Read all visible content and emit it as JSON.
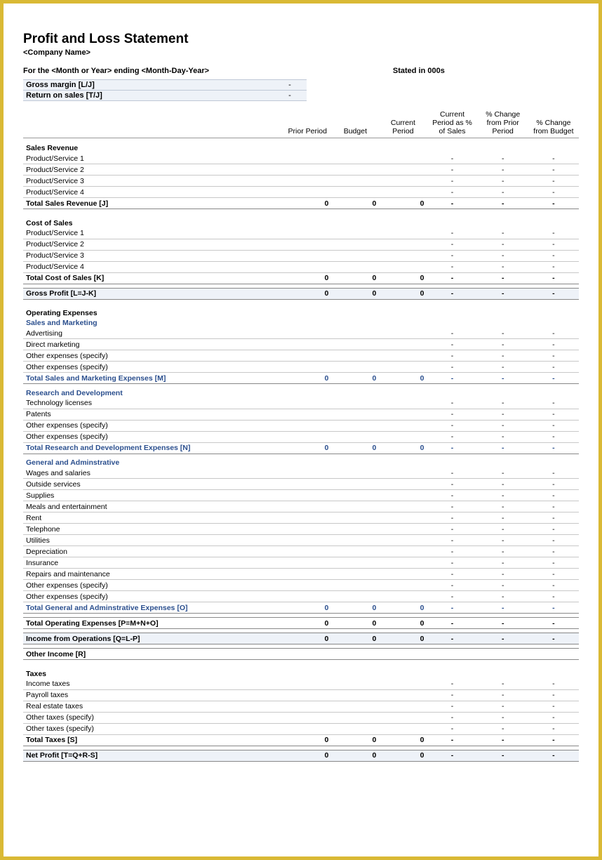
{
  "title": "Profit and Loss Statement",
  "company_name": "<Company Name>",
  "period_line": "For the <Month or Year> ending <Month-Day-Year>",
  "stated_in": "Stated in 000s",
  "top_metrics": [
    {
      "label": "Gross margin  [L/J]",
      "value": "-"
    },
    {
      "label": "Return on sales  [T/J]",
      "value": "-"
    }
  ],
  "columns": [
    "Prior Period",
    "Budget",
    "Current Period",
    "Current Period as % of Sales",
    "% Change from Prior Period",
    "% Change from Budget"
  ],
  "text_color": "#000000",
  "accent_blue": "#2b4f8e",
  "shade_bg": "#eef2f8",
  "border_gold": "#d9b935",
  "dash": "-",
  "zero": "0",
  "sections": {
    "sales_revenue": {
      "heading": "Sales Revenue",
      "rows": [
        "Product/Service 1",
        "Product/Service 2",
        "Product/Service 3",
        "Product/Service 4"
      ],
      "total_label": "Total Sales Revenue  [J]"
    },
    "cost_of_sales": {
      "heading": "Cost of Sales",
      "rows": [
        "Product/Service 1",
        "Product/Service 2",
        "Product/Service 3",
        "Product/Service 4"
      ],
      "total_label": "Total Cost of Sales  [K]"
    },
    "gross_profit": {
      "label": "Gross Profit  [L=J-K]"
    },
    "operating_expenses_heading": "Operating Expenses",
    "sales_marketing": {
      "heading": "Sales and Marketing",
      "rows": [
        "Advertising",
        "Direct marketing",
        "Other expenses (specify)",
        "Other expenses (specify)"
      ],
      "total_label": "Total Sales and Marketing Expenses  [M]"
    },
    "rnd": {
      "heading": "Research and Development",
      "rows": [
        "Technology licenses",
        "Patents",
        "Other expenses (specify)",
        "Other expenses (specify)"
      ],
      "total_label": "Total Research and Development Expenses  [N]"
    },
    "ga": {
      "heading": "General and Adminstrative",
      "rows": [
        "Wages and salaries",
        "Outside services",
        "Supplies",
        "Meals and entertainment",
        "Rent",
        "Telephone",
        "Utilities",
        "Depreciation",
        "Insurance",
        "Repairs and maintenance",
        "Other expenses (specify)",
        "Other expenses (specify)"
      ],
      "total_label": "Total General and Adminstrative Expenses  [O]"
    },
    "total_opex": {
      "label": "Total Operating Expenses  [P=M+N+O]"
    },
    "income_ops": {
      "label": "Income from Operations  [Q=L-P]"
    },
    "other_income": {
      "label": "Other Income  [R]"
    },
    "taxes": {
      "heading": "Taxes",
      "rows": [
        "Income taxes",
        "Payroll taxes",
        "Real estate taxes",
        "Other taxes (specify)",
        "Other taxes (specify)"
      ],
      "total_label": "Total Taxes  [S]"
    },
    "net_profit": {
      "label": "Net Profit  [T=Q+R-S]"
    }
  }
}
